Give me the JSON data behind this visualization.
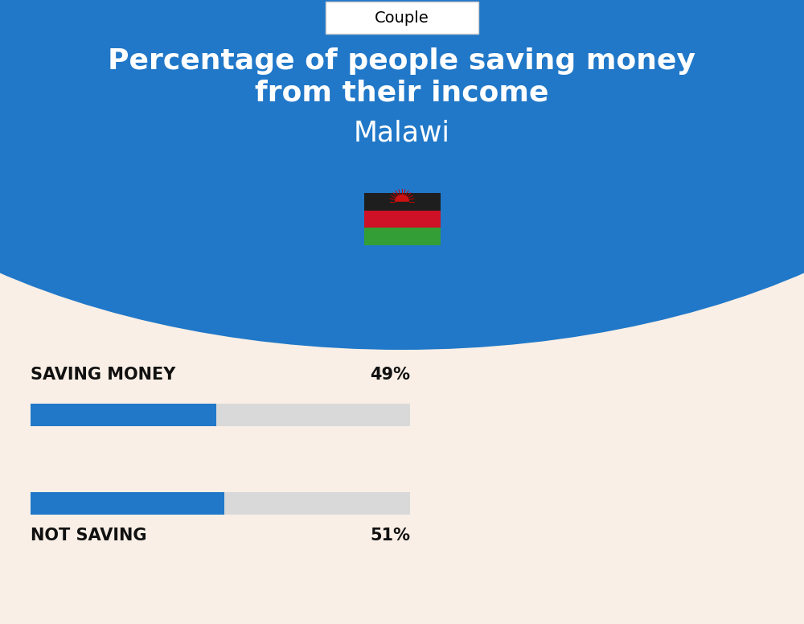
{
  "title_line1": "Percentage of people saving money",
  "title_line2": "from their income",
  "country": "Malawi",
  "tab_label": "Couple",
  "saving_label": "SAVING MONEY",
  "saving_value": 49,
  "saving_pct_text": "49%",
  "not_saving_label": "NOT SAVING",
  "not_saving_value": 51,
  "not_saving_pct_text": "51%",
  "bg_color": "#f9efe6",
  "blue_color": "#2178c8",
  "bar_bg_color": "#d9d9d9",
  "header_blue": "#2178c8",
  "text_color_dark": "#111111",
  "white": "#ffffff",
  "fig_width": 10.0,
  "fig_height": 7.76,
  "dpi": 100
}
